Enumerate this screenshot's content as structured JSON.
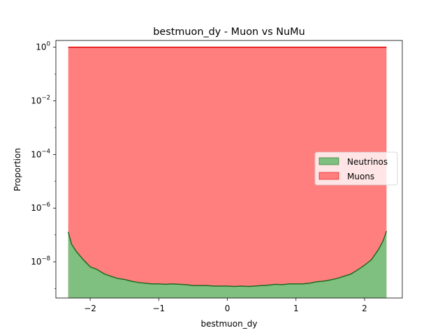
{
  "chart_data": {
    "type": "area",
    "title": "bestmuon_dy - Muon vs NuMu",
    "xlabel": "bestmuon_dy",
    "ylabel": "Proportion",
    "xlim": [
      -2.5,
      2.55
    ],
    "ylim_exponent": [
      -9.35,
      0.25
    ],
    "yscale": "log",
    "x_ticks": [
      -2,
      -1,
      0,
      1,
      2
    ],
    "x_tick_labels": [
      "−2",
      "−1",
      "0",
      "1",
      "2"
    ],
    "y_ticks_exponent": [
      0,
      -2,
      -4,
      -6,
      -8
    ],
    "y_tick_labels": [
      {
        "base": "10",
        "exp": "0"
      },
      {
        "base": "10",
        "exp": "−2"
      },
      {
        "base": "10",
        "exp": "−4"
      },
      {
        "base": "10",
        "exp": "−6"
      },
      {
        "base": "10",
        "exp": "−8"
      }
    ],
    "legend_position": "center-right",
    "series": [
      {
        "name": "Neutrinos",
        "fill_color": "#7fbf7f",
        "line_color": "#1f6a1f",
        "x": [
          -2.32,
          -2.27,
          -2.2,
          -2.1,
          -2.0,
          -1.9,
          -1.8,
          -1.7,
          -1.6,
          -1.5,
          -1.4,
          -1.3,
          -1.2,
          -1.1,
          -1.0,
          -0.9,
          -0.8,
          -0.7,
          -0.6,
          -0.5,
          -0.4,
          -0.3,
          -0.2,
          -0.1,
          0.0,
          0.1,
          0.2,
          0.3,
          0.4,
          0.5,
          0.6,
          0.7,
          0.8,
          0.9,
          1.0,
          1.1,
          1.2,
          1.3,
          1.4,
          1.5,
          1.6,
          1.7,
          1.8,
          1.9,
          2.0,
          2.1,
          2.2,
          2.27,
          2.32
        ],
        "y": [
          1.3e-07,
          4.5e-08,
          2.4e-08,
          1.2e-08,
          6.5e-09,
          5.2e-09,
          3.6e-09,
          2.9e-09,
          2.4e-09,
          2.2e-09,
          1.9e-09,
          1.7e-09,
          1.6e-09,
          1.5e-09,
          1.5e-09,
          1.45e-09,
          1.5e-09,
          1.45e-09,
          1.4e-09,
          1.3e-09,
          1.3e-09,
          1.3e-09,
          1.25e-09,
          1.25e-09,
          1.25e-09,
          1.2e-09,
          1.25e-09,
          1.2e-09,
          1.25e-09,
          1.3e-09,
          1.35e-09,
          1.45e-09,
          1.4e-09,
          1.5e-09,
          1.5e-09,
          1.5e-09,
          1.6e-09,
          1.8e-09,
          1.9e-09,
          2.1e-09,
          2.4e-09,
          2.9e-09,
          3.5e-09,
          5e-09,
          7.5e-09,
          1.2e-08,
          2.8e-08,
          6e-08,
          1.4e-07
        ]
      },
      {
        "name": "Muons",
        "fill_color": "#ff7f7f",
        "line_color": "#e00000",
        "x": [
          -2.32,
          2.32
        ],
        "y": [
          1.0,
          1.0
        ]
      }
    ]
  }
}
